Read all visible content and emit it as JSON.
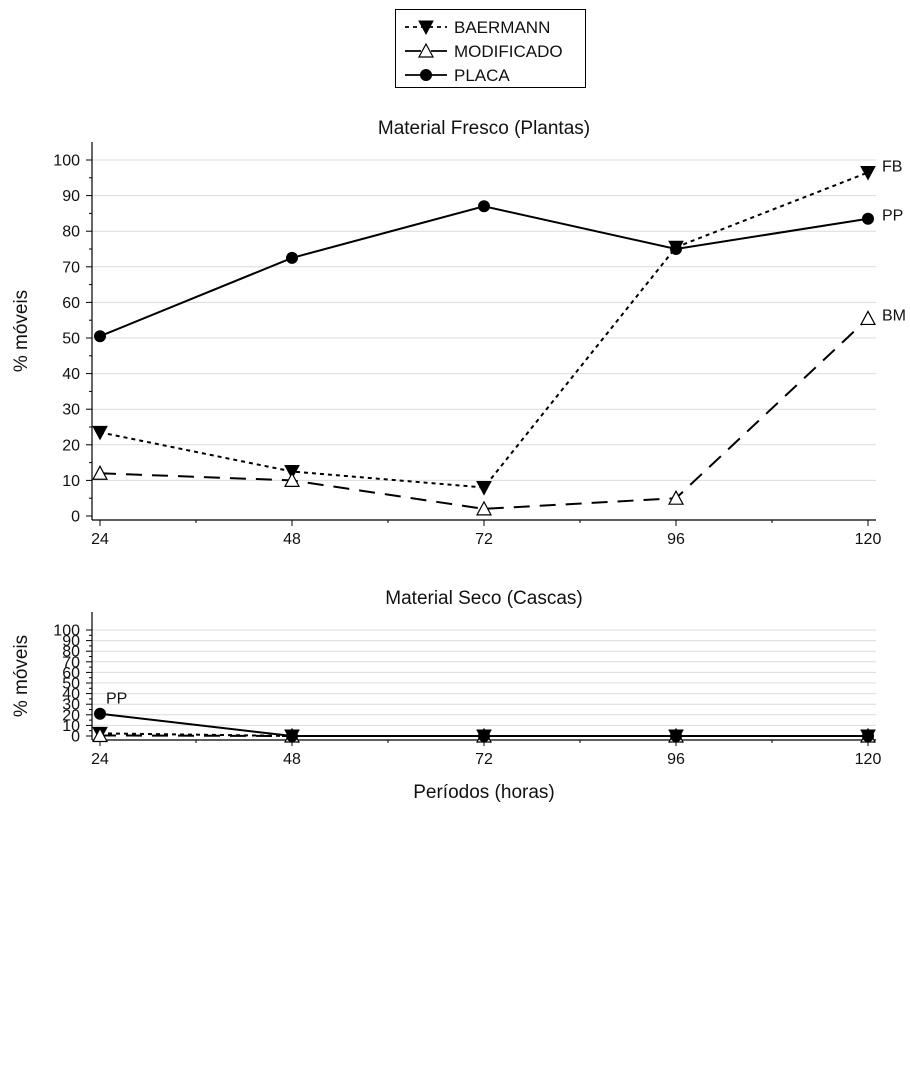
{
  "legend": {
    "entries": [
      {
        "name": "BAERMANN",
        "marker": "triangle-down-filled",
        "line": "dotted"
      },
      {
        "name": "MODIFICADO",
        "marker": "triangle-up-open",
        "line": "dashed"
      },
      {
        "name": "PLACA",
        "marker": "circle-filled",
        "line": "solid"
      }
    ],
    "placement": "top-center"
  },
  "colors": {
    "ink": "#000000",
    "grid": "#dcdcdc",
    "background": "#ffffff"
  },
  "chart_data": [
    {
      "type": "line",
      "title": "Material Fresco (Plantas)",
      "xlabel": "",
      "ylabel": "% móveis",
      "categories": [
        24,
        48,
        72,
        96,
        120
      ],
      "x_ticks": [
        "24",
        "48",
        "72",
        "96",
        "120"
      ],
      "y_ticks": [
        "0",
        "10",
        "20",
        "30",
        "40",
        "50",
        "60",
        "70",
        "80",
        "90",
        "100"
      ],
      "xlim": [
        24,
        120
      ],
      "ylim": [
        0,
        100
      ],
      "grid": "horizontal",
      "series": [
        {
          "name": "BAERMANN",
          "values": [
            23.5,
            12.5,
            8,
            75.5,
            96.5
          ]
        },
        {
          "name": "MODIFICADO",
          "values": [
            12,
            10,
            2,
            5,
            55.5
          ]
        },
        {
          "name": "PLACA",
          "values": [
            50.5,
            72.5,
            87,
            75,
            83.5
          ]
        }
      ],
      "annotations": [
        {
          "text": "FB",
          "x": 120,
          "y": 96.5
        },
        {
          "text": "PP",
          "x": 120,
          "y": 83.5
        },
        {
          "text": "BM",
          "x": 120,
          "y": 55.5
        }
      ]
    },
    {
      "type": "line",
      "title": "Material Seco (Cascas)",
      "xlabel": "Períodos (horas)",
      "ylabel": "% móveis",
      "categories": [
        24,
        48,
        72,
        96,
        120
      ],
      "x_ticks": [
        "24",
        "48",
        "72",
        "96",
        "120"
      ],
      "y_ticks": [
        "0",
        "10",
        "20",
        "30",
        "40",
        "50",
        "60",
        "70",
        "80",
        "90",
        "100"
      ],
      "xlim": [
        24,
        120
      ],
      "ylim": [
        0,
        100
      ],
      "grid": "horizontal",
      "series": [
        {
          "name": "BAERMANN",
          "values": [
            2.5,
            0,
            0,
            0,
            0
          ]
        },
        {
          "name": "MODIFICADO",
          "values": [
            0.5,
            0,
            0,
            0,
            0
          ]
        },
        {
          "name": "PLACA",
          "values": [
            21,
            0,
            0,
            0,
            0
          ]
        }
      ],
      "annotations": [
        {
          "text": "PP",
          "x": 24,
          "y": 21
        }
      ]
    }
  ]
}
